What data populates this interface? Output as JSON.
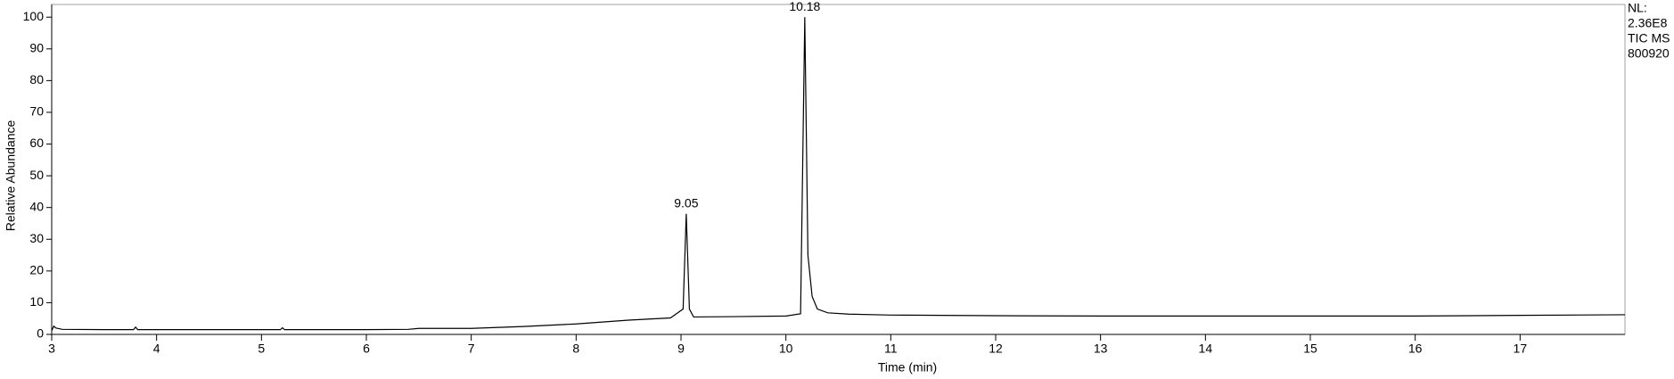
{
  "chart_data": {
    "type": "line",
    "xlabel": "Time (min)",
    "ylabel": "Relative Abundance",
    "info": [
      "NL:",
      "2.36E8",
      "TIC  MS",
      "800920"
    ],
    "x": [
      3.0,
      3.02,
      3.04,
      3.1,
      3.5,
      3.78,
      3.8,
      3.82,
      4.5,
      5.18,
      5.2,
      5.22,
      6.0,
      6.4,
      6.5,
      7.0,
      7.5,
      8.0,
      8.5,
      8.9,
      9.02,
      9.05,
      9.08,
      9.12,
      9.5,
      10.0,
      10.14,
      10.18,
      10.21,
      10.25,
      10.3,
      10.4,
      10.6,
      11.0,
      12.0,
      13.0,
      14.0,
      15.0,
      16.0,
      17.0,
      18.0
    ],
    "values": [
      1.2,
      2.6,
      2.0,
      1.6,
      1.5,
      1.5,
      2.3,
      1.5,
      1.5,
      1.5,
      2.1,
      1.5,
      1.5,
      1.6,
      1.9,
      1.9,
      2.5,
      3.3,
      4.5,
      5.2,
      8.0,
      38.0,
      8.0,
      5.5,
      5.6,
      5.8,
      6.5,
      100.0,
      25.0,
      12.0,
      8.0,
      6.8,
      6.4,
      6.1,
      5.9,
      5.8,
      5.8,
      5.8,
      5.8,
      6.0,
      6.2
    ],
    "color": "#000000",
    "annotations": [
      {
        "text": "9.05",
        "x": 9.05,
        "y": 38.0
      },
      {
        "text": "10.18",
        "x": 10.18,
        "y": 100.0
      }
    ],
    "xlim": [
      3,
      18
    ],
    "xticks": [
      3,
      4,
      5,
      6,
      7,
      8,
      9,
      10,
      11,
      12,
      13,
      14,
      15,
      16,
      17
    ],
    "ylim": [
      0,
      104
    ],
    "yticks": [
      0,
      10,
      20,
      30,
      40,
      50,
      60,
      70,
      80,
      90,
      100
    ]
  }
}
